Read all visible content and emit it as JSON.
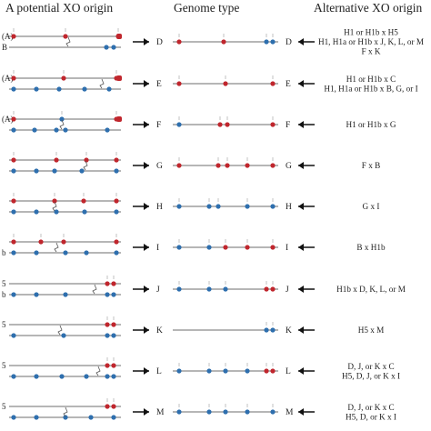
{
  "headers": {
    "left": "A potential XO origin",
    "middle": "Genome type",
    "right": "Alternative XO origin"
  },
  "colors": {
    "red_marker": "#c0262d",
    "blue_marker": "#2e6fae",
    "line": "#8a8a8a",
    "arrow": "#111111"
  },
  "rows": [
    {
      "letter": "D",
      "left_tags": [
        "(A)",
        "B"
      ],
      "alt": [
        "H1 or H1b x H5",
        "H1, H1a or H1b x J, K, L, or M",
        "F x K"
      ]
    },
    {
      "letter": "E",
      "left_tags": [
        "(A)",
        ""
      ],
      "alt": [
        "H1 or H1b x C",
        "H1, H1a or H1b x B, G, or I"
      ]
    },
    {
      "letter": "F",
      "left_tags": [
        "(A)",
        ""
      ],
      "alt": [
        "H1 or H1b x G"
      ]
    },
    {
      "letter": "G",
      "left_tags": [
        "",
        ""
      ],
      "alt": [
        "F x B"
      ]
    },
    {
      "letter": "H",
      "left_tags": [
        "",
        ""
      ],
      "alt": [
        "G x I"
      ]
    },
    {
      "letter": "I",
      "left_tags": [
        "",
        "b"
      ],
      "alt": [
        "B x H1b"
      ]
    },
    {
      "letter": "J",
      "left_tags": [
        "5",
        "b"
      ],
      "alt": [
        "H1b x D, K, L, or M"
      ]
    },
    {
      "letter": "K",
      "left_tags": [
        "5",
        ""
      ],
      "alt": [
        "H5 x M"
      ]
    },
    {
      "letter": "L",
      "left_tags": [
        "5",
        ""
      ],
      "alt": [
        "D, J, or K x C",
        "H5, D, J, or K x I"
      ]
    },
    {
      "letter": "M",
      "left_tags": [
        "5",
        ""
      ],
      "alt": [
        "D, J, or K x C",
        "H5, D, or K x I"
      ]
    }
  ]
}
